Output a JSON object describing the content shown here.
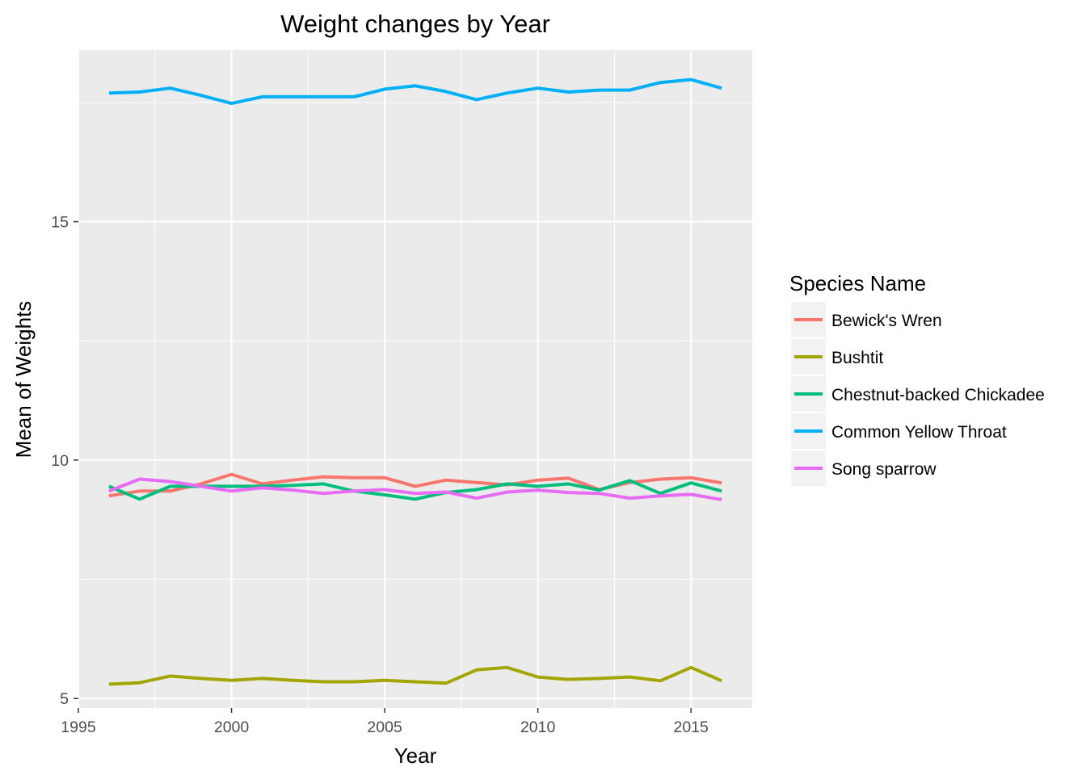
{
  "chart_data": {
    "type": "line",
    "title": "Weight changes by Year",
    "xlabel": "Year",
    "ylabel": "Mean of Weights",
    "xlim": [
      1995,
      2017
    ],
    "ylim": [
      4.8,
      18.6
    ],
    "x_ticks": [
      1995,
      2000,
      2005,
      2010,
      2015
    ],
    "x_tick_labels": [
      "1995",
      "2000",
      "2005",
      "2010",
      "2015"
    ],
    "y_ticks": [
      5,
      10,
      15
    ],
    "y_tick_labels": [
      "5",
      "10",
      "15"
    ],
    "grid": true,
    "legend": {
      "title": "Species Name",
      "position": "right"
    },
    "x": [
      1996,
      1997,
      1998,
      1999,
      2000,
      2001,
      2002,
      2003,
      2004,
      2005,
      2006,
      2007,
      2008,
      2009,
      2010,
      2011,
      2012,
      2013,
      2014,
      2015,
      2016
    ],
    "series": [
      {
        "name": "Bewick's Wren",
        "color": "#F8766D",
        "values": [
          9.25,
          9.35,
          9.35,
          9.5,
          9.7,
          9.5,
          9.58,
          9.65,
          9.63,
          9.63,
          9.45,
          9.58,
          9.53,
          9.48,
          9.58,
          9.62,
          9.38,
          9.53,
          9.6,
          9.63,
          9.52
        ]
      },
      {
        "name": "Bushtit",
        "color": "#A3A500",
        "values": [
          5.3,
          5.33,
          5.47,
          5.42,
          5.38,
          5.42,
          5.38,
          5.35,
          5.35,
          5.38,
          5.35,
          5.32,
          5.6,
          5.65,
          5.45,
          5.4,
          5.42,
          5.45,
          5.37,
          5.65,
          5.37
        ]
      },
      {
        "name": "Chestnut-backed Chickadee",
        "color": "#00BF7D",
        "values": [
          9.45,
          9.18,
          9.45,
          9.45,
          9.45,
          9.45,
          9.47,
          9.5,
          9.35,
          9.27,
          9.18,
          9.32,
          9.38,
          9.5,
          9.45,
          9.5,
          9.37,
          9.57,
          9.3,
          9.52,
          9.35
        ]
      },
      {
        "name": "Common Yellow Throat",
        "color": "#00B0F6",
        "values": [
          17.7,
          17.72,
          17.8,
          17.65,
          17.48,
          17.62,
          17.62,
          17.62,
          17.62,
          17.78,
          17.85,
          17.73,
          17.56,
          17.7,
          17.8,
          17.72,
          17.76,
          17.76,
          17.92,
          17.98,
          17.8
        ]
      },
      {
        "name": "Song sparrow",
        "color": "#E76BF3",
        "values": [
          9.35,
          9.6,
          9.55,
          9.45,
          9.35,
          9.42,
          9.37,
          9.3,
          9.35,
          9.38,
          9.3,
          9.33,
          9.2,
          9.33,
          9.37,
          9.32,
          9.3,
          9.2,
          9.25,
          9.28,
          9.17
        ]
      }
    ]
  }
}
